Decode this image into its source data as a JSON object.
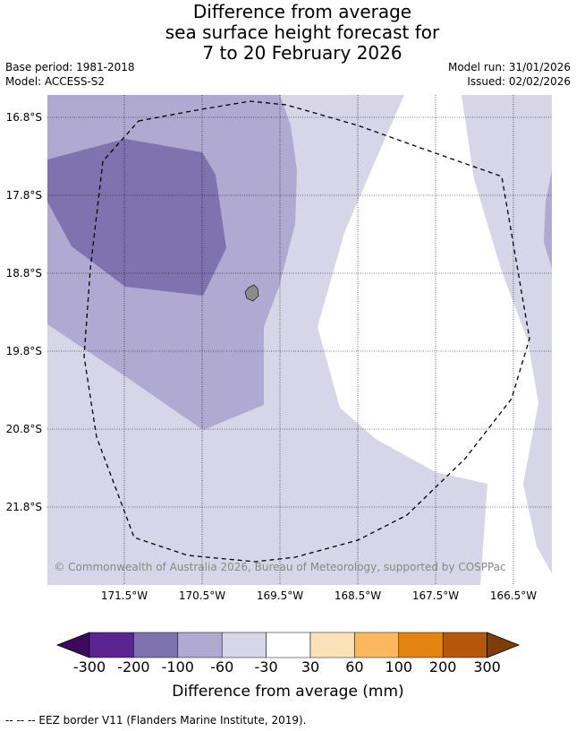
{
  "title": {
    "line1": "Difference from average",
    "line2": "sea surface height forecast for",
    "line3": "7 to 20 February 2026"
  },
  "meta": {
    "base_period": "Base period: 1981-2018",
    "model": "Model: ACCESS-S2",
    "model_run": "Model run: 31/01/2026",
    "issued": "Issued: 02/02/2026"
  },
  "map": {
    "lat_labels": [
      "16.8°S",
      "17.8°S",
      "18.8°S",
      "19.8°S",
      "20.8°S",
      "21.8°S"
    ],
    "lon_labels": [
      "171.5°W",
      "170.5°W",
      "169.5°W",
      "168.5°W",
      "167.5°W",
      "166.5°W"
    ],
    "copyright": "© Commonwealth of Australia 2026, Bureau of Meteorology, supported by COSPPac",
    "colors": {
      "light": "#d6d6e8",
      "medium": "#b0a9d2",
      "dark": "#7e73ae",
      "island": "#8c8c8c"
    }
  },
  "colorbar": {
    "colors": [
      "#3b0a5f",
      "#5b2591",
      "#7e73ae",
      "#b0a9d2",
      "#d6d6e8",
      "#ffffff",
      "#fde1b8",
      "#fbb85e",
      "#e38510",
      "#b5570a",
      "#7f3b08"
    ],
    "tick_labels": [
      "-300",
      "-200",
      "-100",
      "-60",
      "-30",
      "30",
      "60",
      "100",
      "200",
      "300"
    ],
    "axis_title": "Difference from average (mm)"
  },
  "footer": "--  --  -- EEZ border V11 (Flanders Marine Institute, 2019)."
}
